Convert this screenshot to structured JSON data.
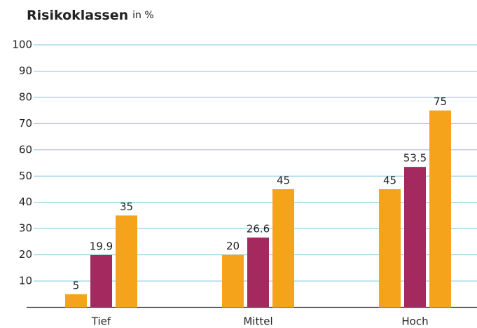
{
  "chart_data": {
    "type": "bar",
    "title": "Risikoklassen",
    "subtitle": "in %",
    "categories": [
      "Tief",
      "Mittel",
      "Hoch"
    ],
    "series": [
      {
        "color": "#f5a31b",
        "values": [
          5,
          20,
          45
        ]
      },
      {
        "color": "#a3295e",
        "values": [
          19.9,
          26.6,
          53.5
        ]
      },
      {
        "color": "#f5a31b",
        "values": [
          35,
          45,
          75
        ]
      }
    ],
    "ylim": [
      0,
      100
    ],
    "yticks": [
      10,
      20,
      30,
      40,
      50,
      60,
      70,
      80,
      90,
      100
    ],
    "grid": true
  }
}
